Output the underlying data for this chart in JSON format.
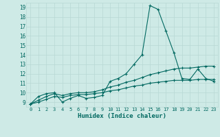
{
  "xlabel": "Humidex (Indice chaleur)",
  "bg_color": "#ceeae6",
  "grid_color": "#b8d8d4",
  "line_color": "#006860",
  "xlim": [
    -0.5,
    23.5
  ],
  "ylim": [
    8.5,
    19.5
  ],
  "xticks": [
    0,
    1,
    2,
    3,
    4,
    5,
    6,
    7,
    8,
    9,
    10,
    11,
    12,
    13,
    14,
    15,
    16,
    17,
    18,
    19,
    20,
    21,
    22,
    23
  ],
  "yticks": [
    9,
    10,
    11,
    12,
    13,
    14,
    15,
    16,
    17,
    18,
    19
  ],
  "series": [
    [
      8.8,
      9.6,
      9.9,
      10.0,
      9.0,
      9.4,
      9.7,
      9.4,
      9.5,
      9.7,
      11.2,
      11.5,
      12.0,
      13.0,
      14.0,
      19.2,
      18.8,
      16.5,
      14.2,
      11.5,
      11.4,
      12.5,
      11.5,
      11.2
    ],
    [
      8.8,
      9.0,
      9.3,
      9.6,
      9.5,
      9.7,
      9.8,
      9.8,
      9.9,
      10.0,
      10.2,
      10.3,
      10.5,
      10.7,
      10.8,
      11.0,
      11.1,
      11.2,
      11.3,
      11.3,
      11.3,
      11.4,
      11.4,
      11.4
    ],
    [
      8.8,
      9.2,
      9.6,
      9.9,
      9.7,
      9.9,
      10.0,
      10.0,
      10.1,
      10.3,
      10.6,
      10.8,
      11.1,
      11.3,
      11.6,
      11.9,
      12.1,
      12.3,
      12.5,
      12.6,
      12.6,
      12.7,
      12.8,
      12.8
    ]
  ]
}
